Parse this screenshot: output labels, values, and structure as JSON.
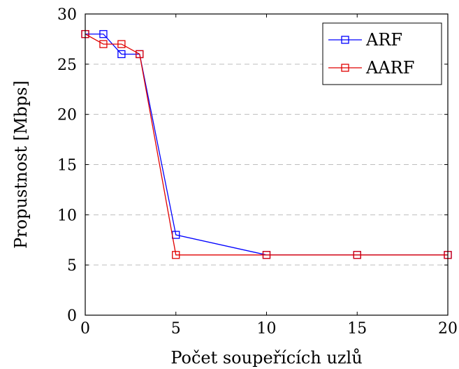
{
  "chart_data": {
    "type": "line",
    "title": "",
    "xlabel": "Počet soupeřících uzlů",
    "ylabel": "Propustnost [Mbps]",
    "xlim": [
      0,
      20
    ],
    "ylim": [
      0,
      30
    ],
    "xticks": [
      0,
      5,
      10,
      15,
      20
    ],
    "yticks": [
      0,
      5,
      10,
      15,
      20,
      25,
      30
    ],
    "grid": "horizontal dashed",
    "legend_position": "top-right",
    "marker": "square",
    "series": [
      {
        "name": "ARF",
        "color": "#0000ff",
        "x": [
          0,
          1,
          2,
          3,
          5,
          10,
          15,
          20
        ],
        "y": [
          28,
          28,
          26,
          26,
          8,
          6,
          6,
          6
        ]
      },
      {
        "name": "AARF",
        "color": "#e00000",
        "x": [
          0,
          1,
          2,
          3,
          5,
          10,
          15,
          20
        ],
        "y": [
          28,
          27,
          27,
          26,
          6,
          6,
          6,
          6
        ]
      }
    ]
  }
}
